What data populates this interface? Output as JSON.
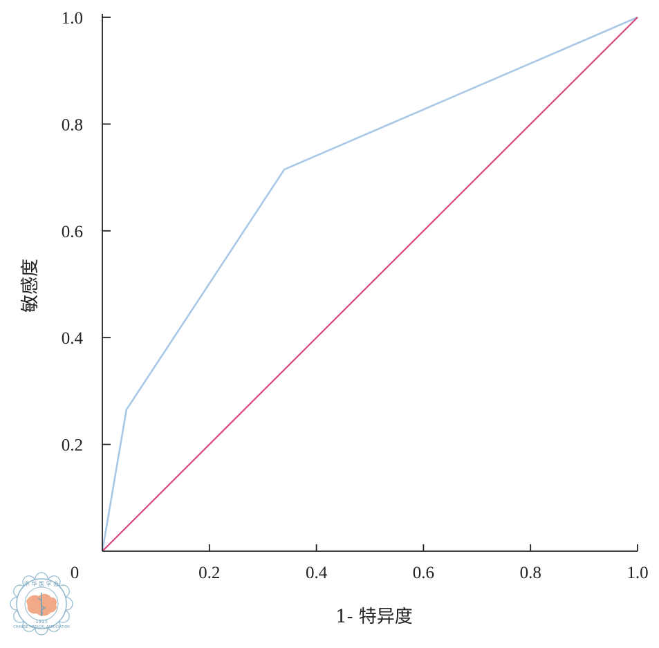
{
  "chart_data": {
    "type": "line",
    "xlabel": "1- 特异度",
    "ylabel": "敏感度",
    "xlim": [
      0,
      1.0
    ],
    "ylim": [
      0,
      1.0
    ],
    "x_ticks": [
      {
        "value": 0,
        "label": "0"
      },
      {
        "value": 0.2,
        "label": "0.2"
      },
      {
        "value": 0.4,
        "label": "0.4"
      },
      {
        "value": 0.6,
        "label": "0.6"
      },
      {
        "value": 0.8,
        "label": "0.8"
      },
      {
        "value": 1.0,
        "label": "1.0"
      }
    ],
    "y_ticks": [
      {
        "value": 0.2,
        "label": "0.2"
      },
      {
        "value": 0.4,
        "label": "0.4"
      },
      {
        "value": 0.6,
        "label": "0.6"
      },
      {
        "value": 0.8,
        "label": "0.8"
      },
      {
        "value": 1.0,
        "label": "1.0"
      }
    ],
    "grid": false,
    "series": [
      {
        "color": "#a9c8e8",
        "x": [
          0.0,
          0.045,
          0.34,
          1.0
        ],
        "y": [
          0.0,
          0.265,
          0.715,
          1.0
        ]
      },
      {
        "color": "#d9467f",
        "x": [
          0.0,
          1.0
        ],
        "y": [
          0.0,
          1.0
        ]
      }
    ]
  },
  "watermark": {
    "text_top": "中 华 医 学 会",
    "text_bottom": "CHINESE MEDICAL ASSOCIATION",
    "year": "1915",
    "ring_color": "#8fb7cc",
    "map_color": "#f2a987"
  }
}
